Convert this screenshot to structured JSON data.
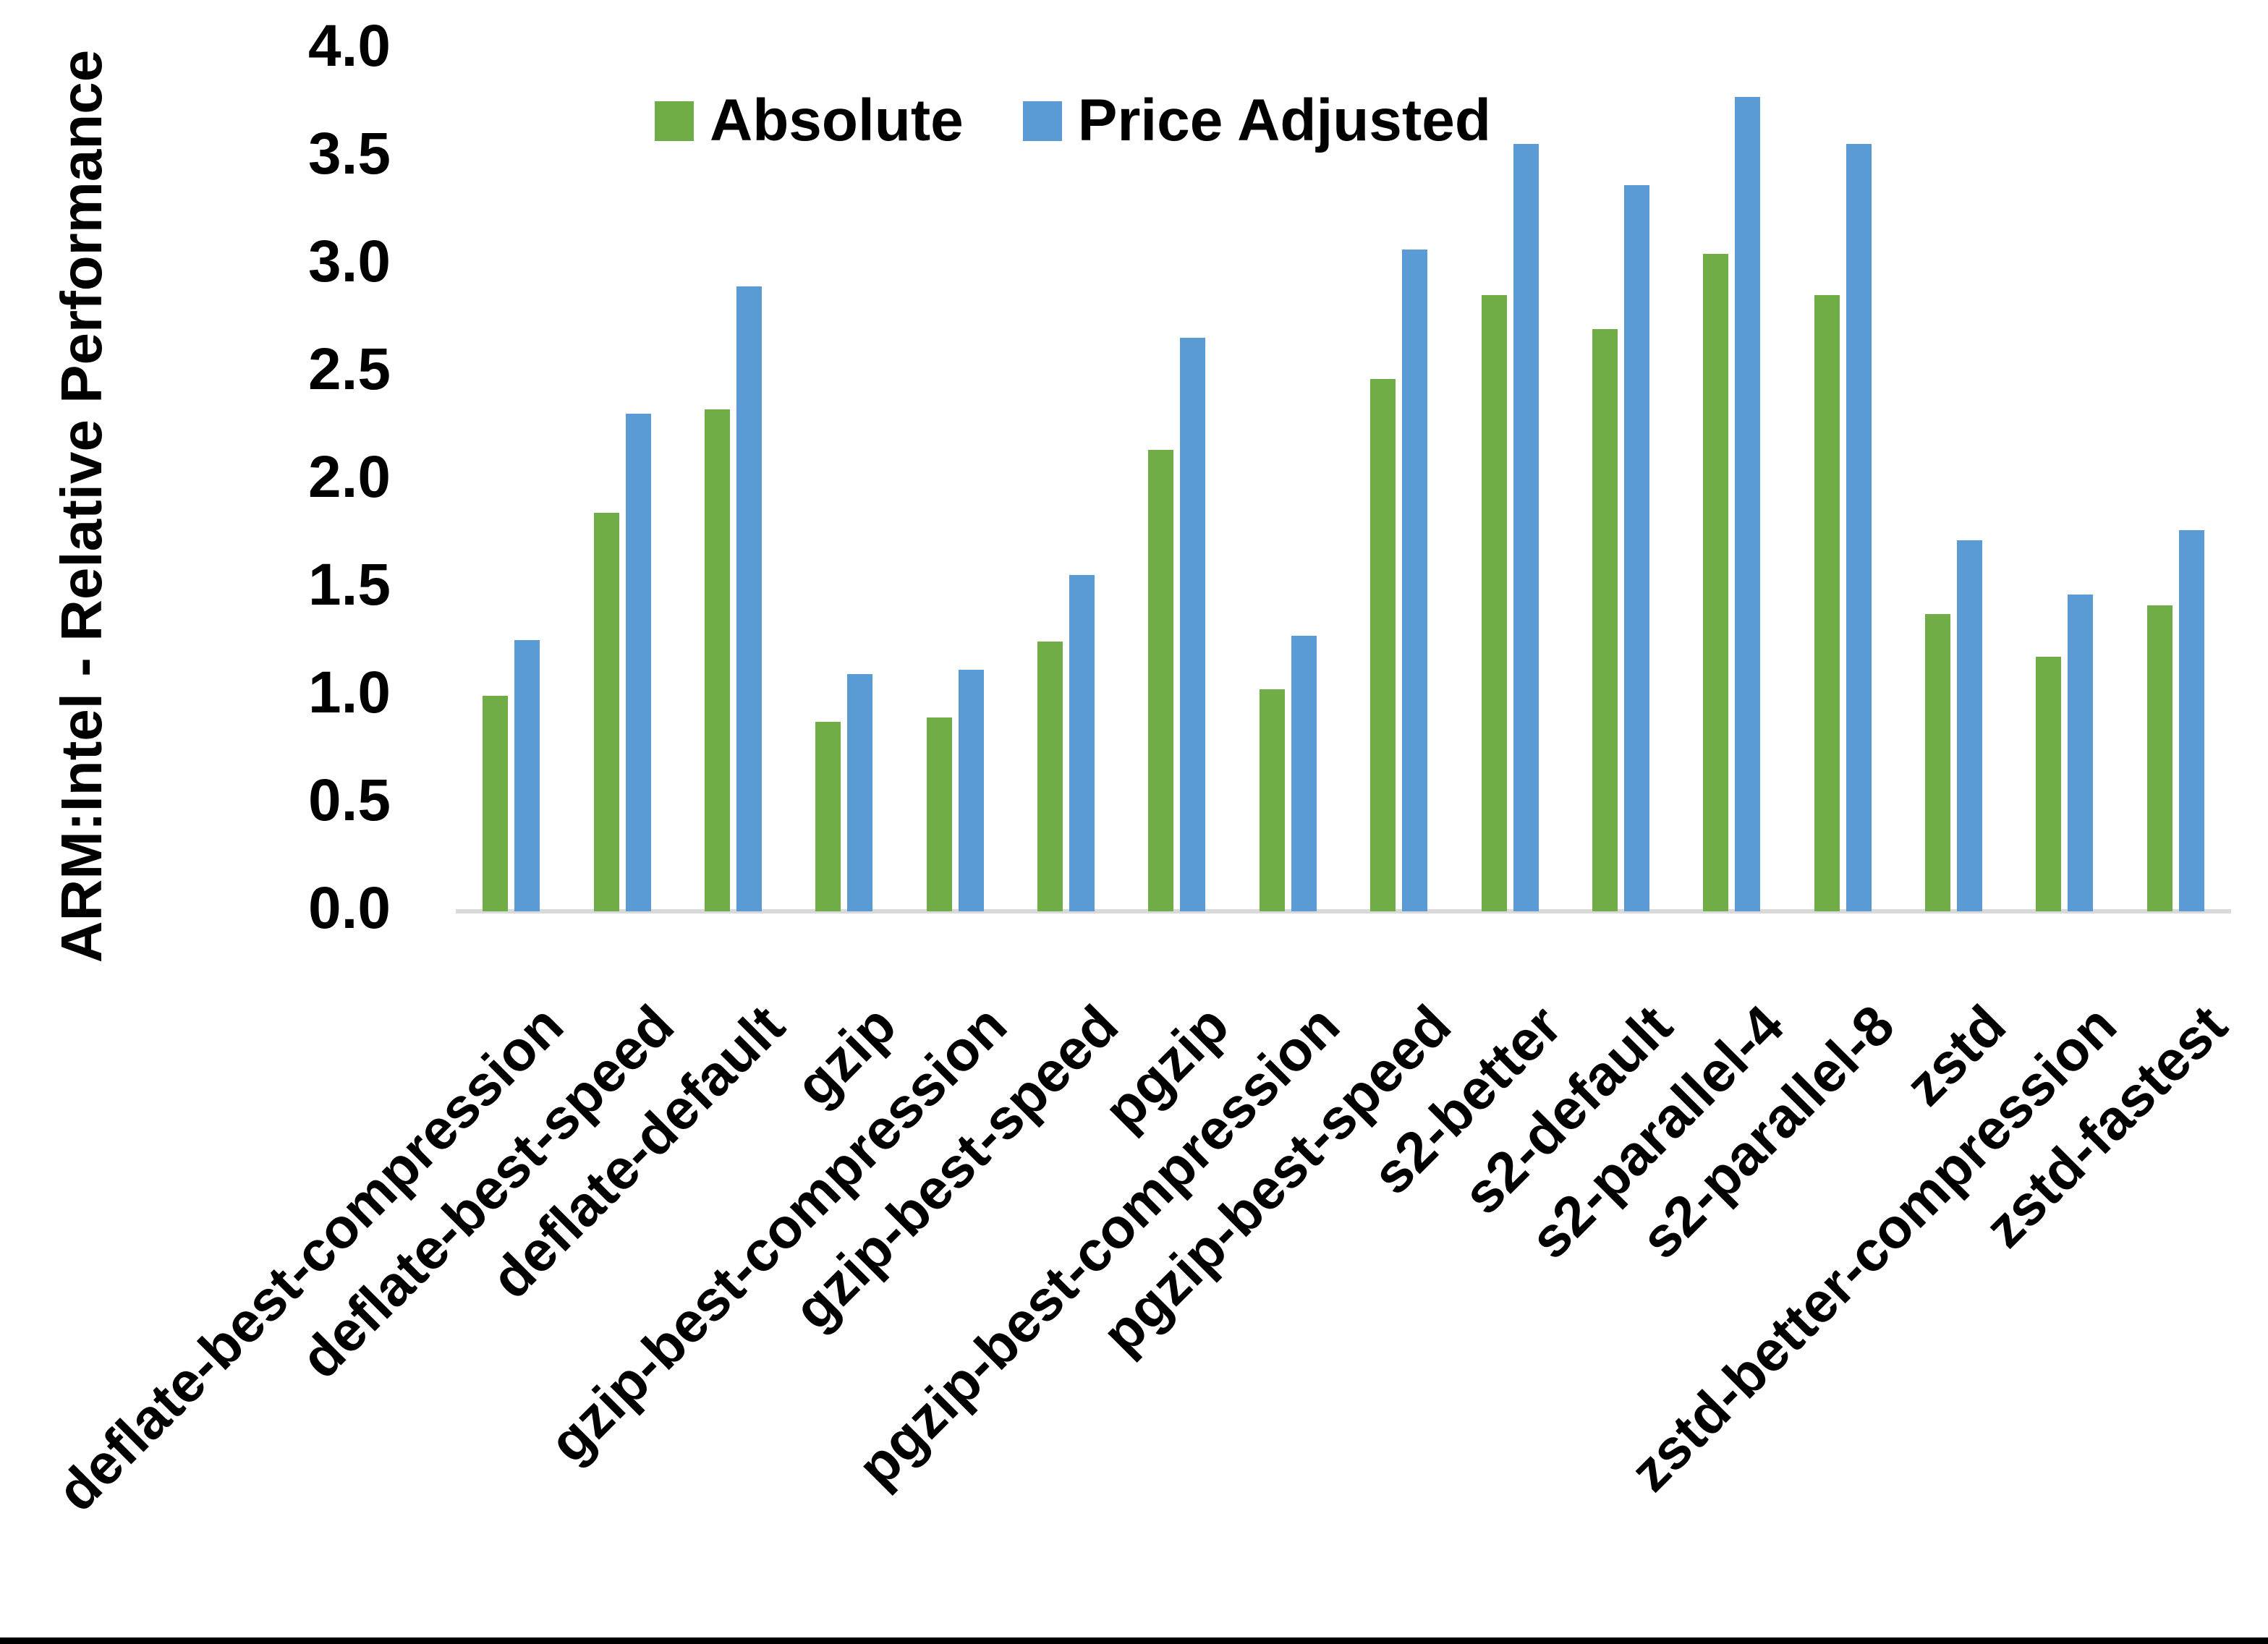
{
  "chart_data": {
    "type": "bar",
    "title": "",
    "xlabel": "",
    "ylabel": "ARM:Intel - Relative Performance",
    "ylim": [
      0.0,
      4.0
    ],
    "ytick_step": 0.5,
    "ytick_labels": [
      "0.0",
      "0.5",
      "1.0",
      "1.5",
      "2.0",
      "2.5",
      "3.0",
      "3.5",
      "4.0"
    ],
    "grid": false,
    "legend_position": "top-center",
    "axis_line_color": "#D9D9D9",
    "text_color": "#000000",
    "background_color": "#FFFFFF",
    "categories": [
      "deflate-best-compression",
      "deflate-best-speed",
      "deflate-default",
      "gzip",
      "gzip-best-compression",
      "gzip-best-speed",
      "pgzip",
      "pgzip-best-compression",
      "pgzip-best-speed",
      "s2-better",
      "s2-default",
      "s2-parallel-4",
      "s2-parallel-8",
      "zstd",
      "zstd-better-compression",
      "zstd-fastest"
    ],
    "series": [
      {
        "name": "Absolute",
        "color": "#70AD47",
        "values": [
          1.0,
          1.85,
          2.33,
          0.88,
          0.9,
          1.25,
          2.14,
          1.03,
          2.47,
          2.86,
          2.7,
          3.05,
          2.86,
          1.38,
          1.18,
          1.42
        ]
      },
      {
        "name": "Price Adjusted",
        "color": "#5B9BD5",
        "values": [
          1.26,
          2.31,
          2.9,
          1.1,
          1.12,
          1.56,
          2.66,
          1.28,
          3.07,
          3.56,
          3.37,
          3.78,
          3.56,
          1.72,
          1.47,
          1.77
        ]
      }
    ]
  }
}
